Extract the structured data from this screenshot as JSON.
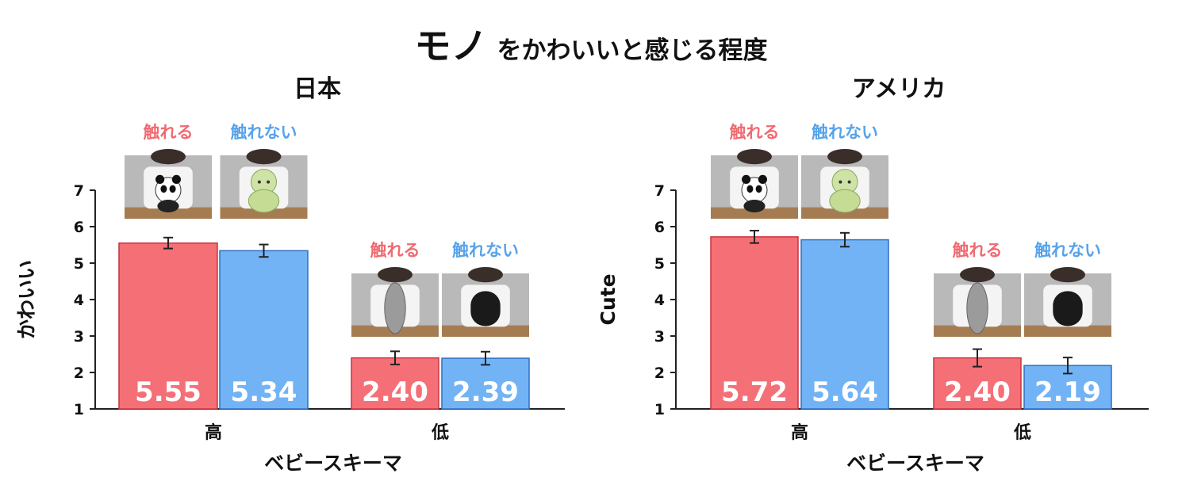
{
  "title": {
    "main": "モノ",
    "sub": "をかわいいと感じる程度"
  },
  "colors": {
    "touch": "#f56f76",
    "touch_edge": "#c9343e",
    "notouch": "#72b3f5",
    "notouch_edge": "#2f6fc0",
    "touch_text": "#f06a70",
    "notouch_text": "#57a3ea"
  },
  "legend_labels": {
    "touch": "触れる",
    "notouch": "触れない"
  },
  "chart_data": [
    {
      "type": "bar",
      "title": "日本",
      "xlabel": "ベビースキーマ",
      "ylabel": "かわいい",
      "ylim": [
        1,
        7
      ],
      "yticks": [
        1,
        2,
        3,
        4,
        5,
        6,
        7
      ],
      "categories": [
        "高",
        "低"
      ],
      "series": [
        {
          "name": "触れる",
          "values": [
            5.55,
            2.4
          ],
          "value_labels": [
            "5.55",
            "2.40"
          ],
          "error": [
            0.15,
            0.18
          ]
        },
        {
          "name": "触れない",
          "values": [
            5.34,
            2.39
          ],
          "value_labels": [
            "5.34",
            "2.39"
          ],
          "error": [
            0.17,
            0.18
          ]
        }
      ]
    },
    {
      "type": "bar",
      "title": "アメリカ",
      "xlabel": "ベビースキーマ",
      "ylabel": "Cute",
      "ylim": [
        1,
        7
      ],
      "yticks": [
        1,
        2,
        3,
        4,
        5,
        6,
        7
      ],
      "categories": [
        "高",
        "低"
      ],
      "series": [
        {
          "name": "触れる",
          "values": [
            5.72,
            2.4
          ],
          "value_labels": [
            "5.72",
            "2.40"
          ],
          "error": [
            0.17,
            0.24
          ]
        },
        {
          "name": "触れない",
          "values": [
            5.64,
            2.19
          ],
          "value_labels": [
            "5.64",
            "2.19"
          ],
          "error": [
            0.19,
            0.22
          ]
        }
      ]
    }
  ],
  "stimulus_images": [
    "panda-plush-photo",
    "turtle-plush-photo",
    "gray-stone-photo",
    "black-stone-photo"
  ]
}
